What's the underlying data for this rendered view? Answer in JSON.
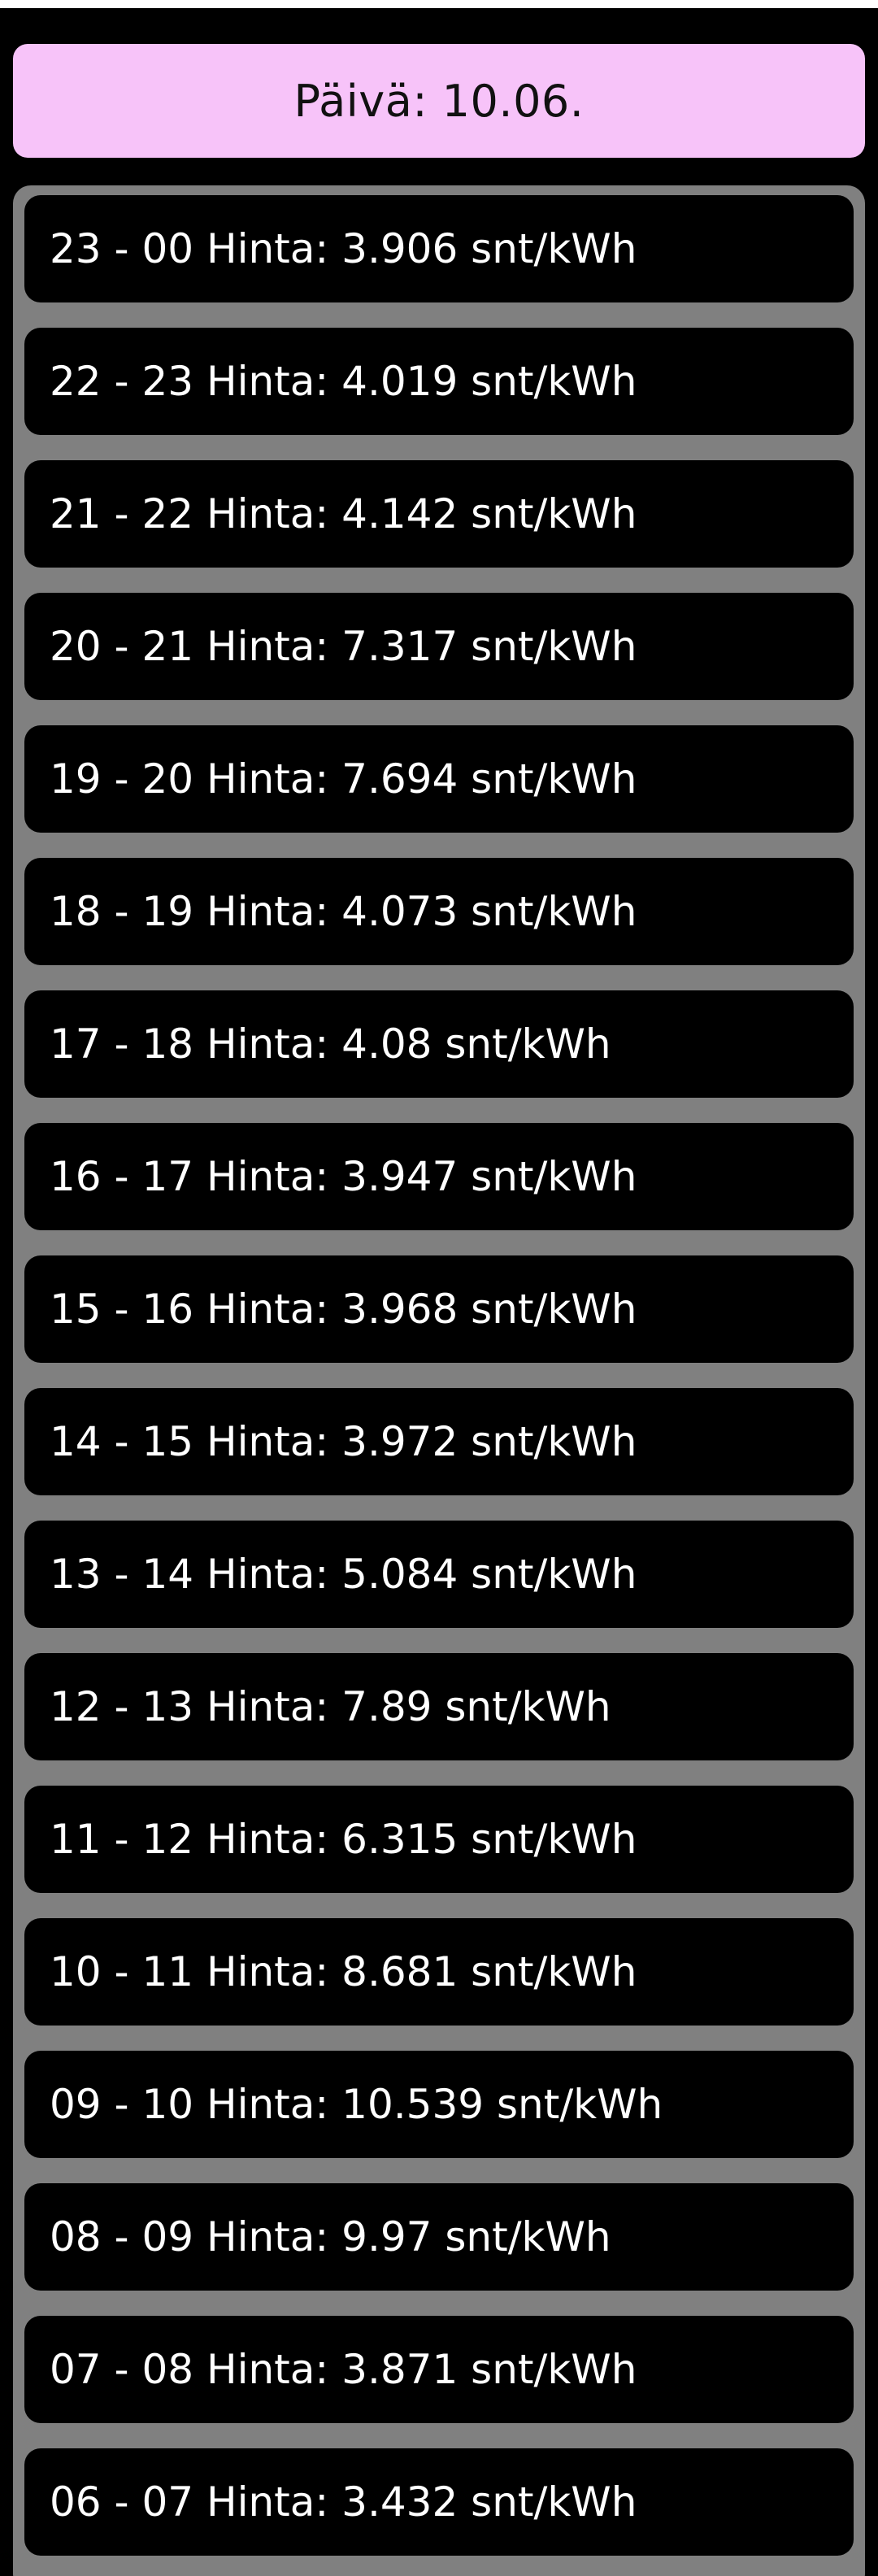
{
  "header": {
    "date_label": "Päivä: 10.06."
  },
  "prices": [
    "23 - 00 Hinta: 3.906 snt/kWh",
    "22 - 23 Hinta: 4.019 snt/kWh",
    "21 - 22 Hinta: 4.142 snt/kWh",
    "20 - 21 Hinta: 7.317 snt/kWh",
    "19 - 20 Hinta: 7.694 snt/kWh",
    "18 - 19 Hinta: 4.073 snt/kWh",
    "17 - 18 Hinta: 4.08 snt/kWh",
    "16 - 17 Hinta: 3.947 snt/kWh",
    "15 - 16 Hinta: 3.968 snt/kWh",
    "14 - 15 Hinta: 3.972 snt/kWh",
    "13 - 14 Hinta: 5.084 snt/kWh",
    "12 - 13 Hinta: 7.89 snt/kWh",
    "11 - 12 Hinta: 6.315 snt/kWh",
    "10 - 11 Hinta: 8.681 snt/kWh",
    "09 - 10 Hinta: 10.539 snt/kWh",
    "08 - 09 Hinta: 9.97 snt/kWh",
    "07 - 08 Hinta: 3.871 snt/kWh",
    "06 - 07 Hinta: 3.432 snt/kWh"
  ],
  "colors": {
    "background": "#000000",
    "header_background": "#f7c3f9",
    "panel_background": "#808080",
    "row_background": "#000000",
    "row_text": "#ffffff"
  }
}
